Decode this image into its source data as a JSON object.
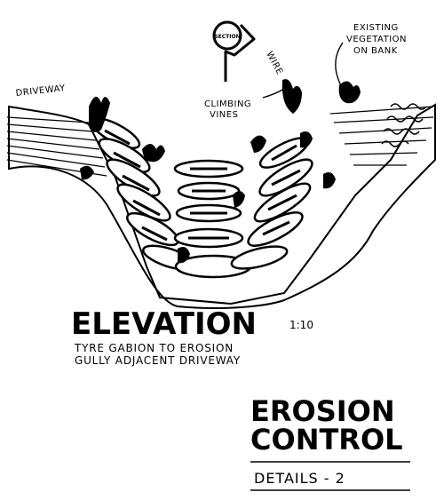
{
  "drawing": {
    "section_marker": "SECTION",
    "labels": {
      "driveway": "DRIVEWAY",
      "climbing_vines": [
        "CLIMBING",
        "VINES"
      ],
      "wire": "WIRE",
      "existing_vegetation": [
        "EXISTING",
        "VEGETATION",
        "ON BANK"
      ]
    },
    "elevation": {
      "title": "ELEVATION",
      "scale": "1:10",
      "caption": [
        "TYRE GABION TO EROSION",
        "GULLY ADJACENT DRIVEWAY"
      ]
    }
  },
  "title_block": {
    "line1": "EROSION",
    "line2": "CONTROL",
    "details": "DETAILS  -  2"
  }
}
